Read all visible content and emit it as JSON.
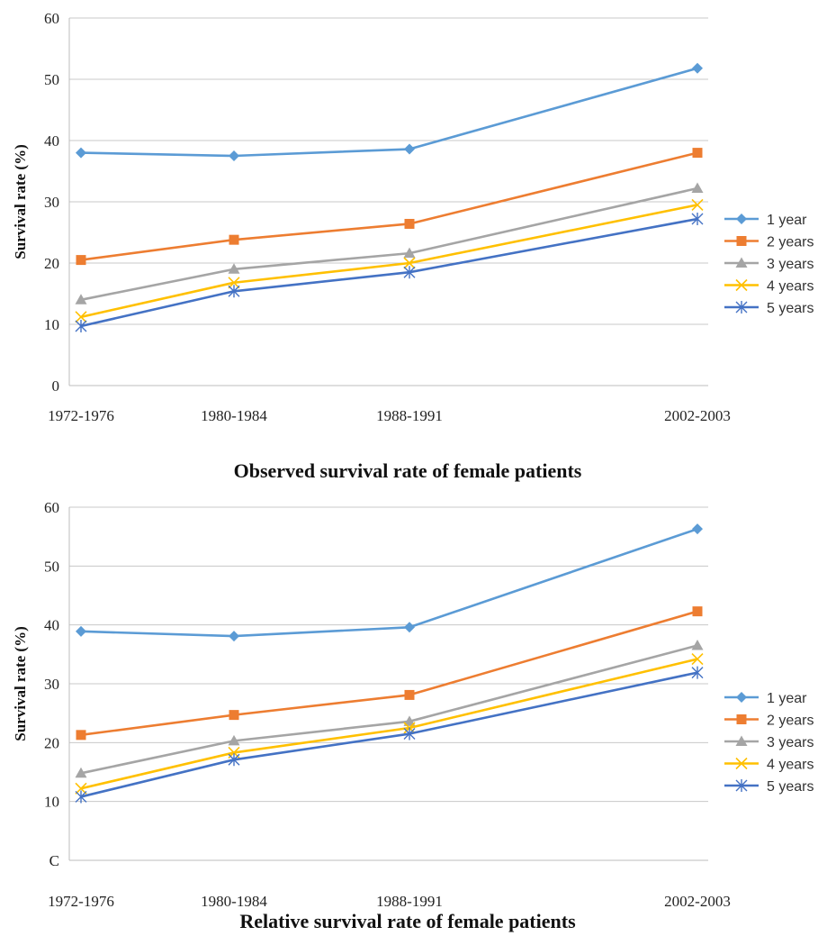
{
  "chart_data": [
    {
      "type": "line",
      "title": "Observed survival rate of female patients",
      "xlabel": "",
      "ylabel": "Survival rate (%)",
      "ylim": [
        0,
        60
      ],
      "yticks": [
        "0",
        "10",
        "20",
        "30",
        "40",
        "50",
        "60"
      ],
      "grid": true,
      "legend_position": "right",
      "x": [
        "1972-1976",
        "1980-1984",
        "1988-1991",
        "2002-2003"
      ],
      "series": [
        {
          "name": "1 year",
          "color": "#5B9BD5",
          "marker": "diamond",
          "values": [
            38.0,
            37.5,
            38.6,
            51.8
          ]
        },
        {
          "name": "2 years",
          "color": "#ED7D31",
          "marker": "square",
          "values": [
            20.5,
            23.8,
            26.4,
            38.0
          ]
        },
        {
          "name": "3 years",
          "color": "#A5A5A5",
          "marker": "triangle",
          "values": [
            14.0,
            19.0,
            21.6,
            32.2
          ]
        },
        {
          "name": "4 years",
          "color": "#FFC000",
          "marker": "x",
          "values": [
            11.2,
            16.8,
            20.0,
            29.5
          ]
        },
        {
          "name": "5 years",
          "color": "#4472C4",
          "marker": "star",
          "values": [
            9.7,
            15.4,
            18.5,
            27.2
          ]
        }
      ]
    },
    {
      "type": "line",
      "title": "Relative survival rate of female patients",
      "xlabel": "",
      "ylabel": "Survival rate (%)",
      "ylim": [
        0,
        60
      ],
      "yticks": [
        "C",
        "10",
        "20",
        "30",
        "40",
        "50",
        "60"
      ],
      "grid": true,
      "legend_position": "right",
      "x": [
        "1972-1976",
        "1980-1984",
        "1988-1991",
        "2002-2003"
      ],
      "series": [
        {
          "name": "1 year",
          "color": "#5B9BD5",
          "marker": "diamond",
          "values": [
            38.9,
            38.1,
            39.6,
            56.3
          ]
        },
        {
          "name": "2 years",
          "color": "#ED7D31",
          "marker": "square",
          "values": [
            21.3,
            24.7,
            28.1,
            42.3
          ]
        },
        {
          "name": "3 years",
          "color": "#A5A5A5",
          "marker": "triangle",
          "values": [
            14.8,
            20.3,
            23.6,
            36.5
          ]
        },
        {
          "name": "4 years",
          "color": "#FFC000",
          "marker": "x",
          "values": [
            12.2,
            18.3,
            22.5,
            34.2
          ]
        },
        {
          "name": "5 years",
          "color": "#4472C4",
          "marker": "star",
          "values": [
            10.8,
            17.1,
            21.5,
            31.9
          ]
        }
      ]
    }
  ]
}
